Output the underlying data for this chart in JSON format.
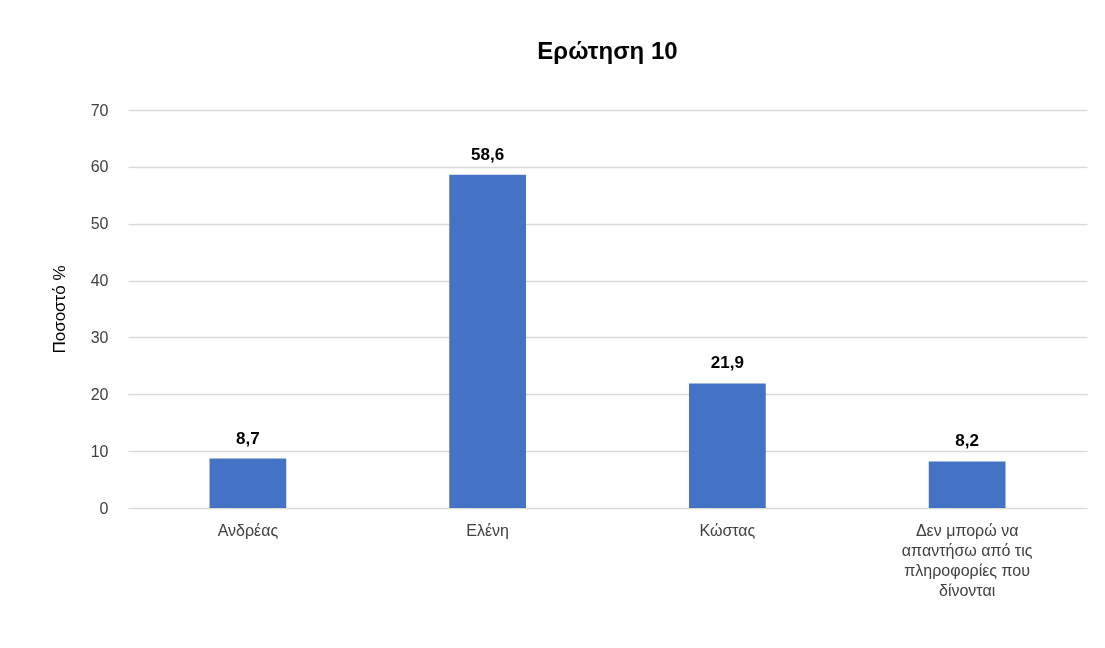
{
  "chart_data": {
    "type": "bar",
    "title": "Ερώτηση 10",
    "ylabel": "Ποσοστό %",
    "categories": [
      "Ανδρέας",
      "Ελένη",
      "Κώστας",
      "Δεν μπορώ να απαντήσω από τις πληροφορίες που δίνονται"
    ],
    "values": [
      8.7,
      58.6,
      21.9,
      8.2
    ],
    "value_labels": [
      "8,7",
      "58,6",
      "21,9",
      "8,2"
    ],
    "color": "#4472c4",
    "ylim": [
      0,
      70
    ],
    "yticks": [
      0,
      10,
      20,
      30,
      40,
      50,
      60,
      70
    ],
    "grid": "y"
  }
}
